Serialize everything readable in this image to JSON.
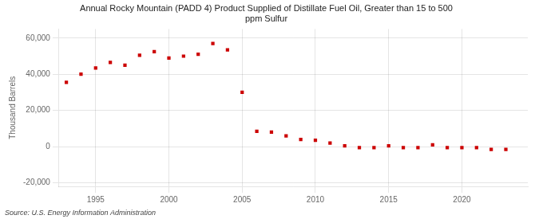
{
  "chart_data": {
    "type": "scatter",
    "title": "Annual Rocky Mountain (PADD 4) Product Supplied of Distillate Fuel Oil, Greater than 15 to 500\nppm Sulfur",
    "y_label": "Thousand Barrels",
    "annotations": [
      "Source: U.S. Energy Information Administration"
    ],
    "x": [
      1993,
      1994,
      1995,
      1996,
      1997,
      1998,
      1999,
      2000,
      2001,
      2002,
      2003,
      2004,
      2005,
      2006,
      2007,
      2008,
      2009,
      2010,
      2011,
      2012,
      2013,
      2014,
      2015,
      2016,
      2017,
      2018,
      2019,
      2020,
      2021,
      2022,
      2023
    ],
    "values": [
      35500,
      40000,
      43500,
      46500,
      45000,
      50500,
      52500,
      49000,
      50000,
      51000,
      57000,
      53500,
      30000,
      8500,
      8000,
      6000,
      4000,
      3500,
      2000,
      500,
      -500,
      -500,
      500,
      -500,
      -500,
      1000,
      -500,
      -500,
      -500,
      -1500,
      -1500
    ],
    "color": "#cc0000",
    "marker": "square",
    "xlim": [
      1992.5,
      2024.5
    ],
    "xticks": [
      1995,
      2000,
      2005,
      2010,
      2015,
      2020
    ],
    "ylim": [
      -22000,
      65000
    ],
    "yticks": [
      {
        "value": -20000,
        "label": "-20,000"
      },
      0,
      {
        "value": 20000,
        "label": "20,000"
      },
      {
        "value": 40000,
        "label": "40,000"
      },
      {
        "value": 60000,
        "label": "60,000"
      }
    ],
    "grid": true
  }
}
